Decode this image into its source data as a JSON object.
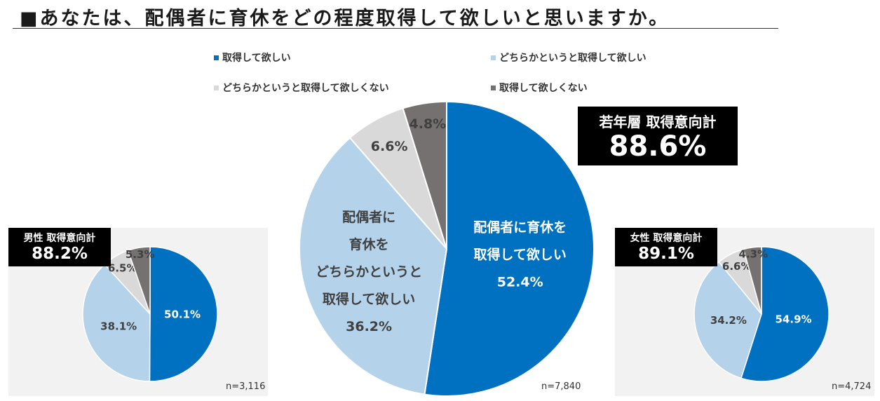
{
  "title": "■あなたは、配偶者に育休をどの程度取得して欲しいと思いますか。",
  "legend": [
    {
      "label": "取得して欲しい",
      "color": "#0070c0"
    },
    {
      "label": "どちらかというと取得して欲しい",
      "color": "#b4d3ea"
    },
    {
      "label": "どちらかというと取得して欲しくない",
      "color": "#d9d9d9"
    },
    {
      "label": "取得して欲しくない",
      "color": "#767171"
    }
  ],
  "main_badge": {
    "label": "若年層 取得意向計",
    "value": "88.6%"
  },
  "male_badge": {
    "label": "男性 取得意向計",
    "value": "88.2%"
  },
  "female_badge": {
    "label": "女性 取得意向計",
    "value": "89.1%"
  },
  "chart_data": [
    {
      "type": "pie",
      "name": "若年層",
      "categories": [
        "取得して欲しい",
        "どちらかというと取得して欲しい",
        "どちらかというと取得して欲しくない",
        "取得して欲しくない"
      ],
      "values": [
        52.4,
        36.2,
        6.6,
        4.8
      ],
      "value_labels": [
        "52.4%",
        "36.2%",
        "6.6%",
        "4.8%"
      ],
      "slice_labels": [
        "配偶者に育休を\n取得して欲しい",
        "配偶者に\n育休を\nどちらかというと\n取得して欲しい",
        "",
        ""
      ],
      "colors": [
        "#0070c0",
        "#b4d3ea",
        "#d9d9d9",
        "#767171"
      ],
      "n": "n=7,840"
    },
    {
      "type": "pie",
      "name": "男性",
      "categories": [
        "取得して欲しい",
        "どちらかというと取得して欲しい",
        "どちらかというと取得して欲しくない",
        "取得して欲しくない"
      ],
      "values": [
        50.1,
        38.1,
        6.5,
        5.3
      ],
      "value_labels": [
        "50.1%",
        "38.1%",
        "6.5%",
        "5.3%"
      ],
      "colors": [
        "#0070c0",
        "#b4d3ea",
        "#d9d9d9",
        "#767171"
      ],
      "n": "n=3,116"
    },
    {
      "type": "pie",
      "name": "女性",
      "categories": [
        "取得して欲しい",
        "どちらかというと取得して欲しい",
        "どちらかというと取得して欲しくない",
        "取得して欲しくない"
      ],
      "values": [
        54.9,
        34.2,
        6.6,
        4.3
      ],
      "value_labels": [
        "54.9%",
        "34.2%",
        "6.6%",
        "4.3%"
      ],
      "colors": [
        "#0070c0",
        "#b4d3ea",
        "#d9d9d9",
        "#767171"
      ],
      "n": "n=4,724"
    }
  ]
}
